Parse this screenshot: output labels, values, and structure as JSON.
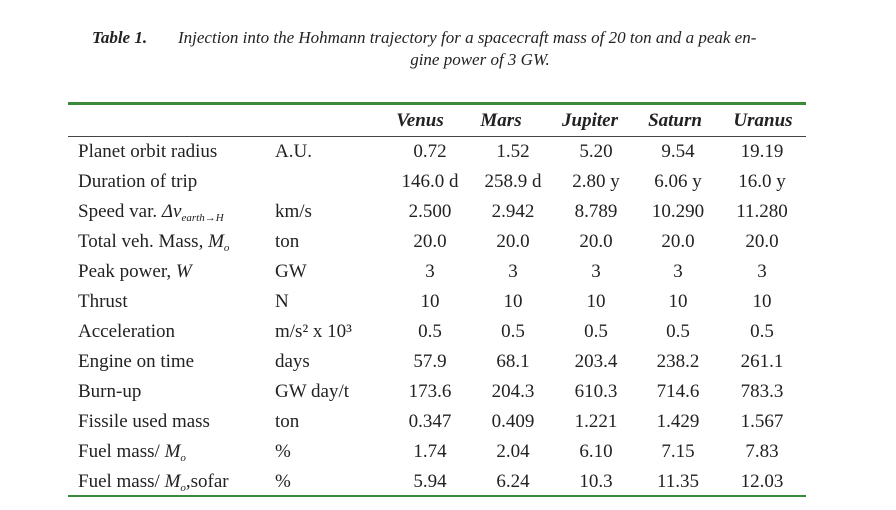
{
  "caption": {
    "label": "Table 1.",
    "lines": [
      "Injection into the Hohmann trajectory for a spacecraft mass of 20 ton and a peak en-",
      "gine power of 3 GW."
    ]
  },
  "table": {
    "header": [
      "Venus",
      "Mars",
      "Jupiter",
      "Saturn",
      "Uranus"
    ],
    "rows": [
      {
        "label": "Planet orbit radius",
        "unit": "A.U.",
        "values": [
          "0.72",
          "1.52",
          "5.20",
          "9.54",
          "19.19"
        ]
      },
      {
        "label": "Duration of trip",
        "values": [
          "146.0 d",
          "258.9 d",
          "2.80 y",
          "6.06 y",
          "16.0 y"
        ]
      },
      {
        "label": "Speed var. ",
        "symbol": "Δv",
        "subscript": "earth→H",
        "unit": "km/s",
        "values": [
          "2.500",
          "2.942",
          "8.789",
          "10.290",
          "11.280"
        ]
      },
      {
        "label": "Total veh. Mass, ",
        "symbol": "M",
        "subscript": "o",
        "unit": "ton",
        "values": [
          "20.0",
          "20.0",
          "20.0",
          "20.0",
          "20.0"
        ]
      },
      {
        "label": "Peak power, ",
        "symbol": "W",
        "unit": "GW",
        "values": [
          "3",
          "3",
          "3",
          "3",
          "3"
        ]
      },
      {
        "label": "Thrust",
        "unit": "N",
        "values": [
          "10",
          "10",
          "10",
          "10",
          "10"
        ]
      },
      {
        "label": "Acceleration",
        "unit": "m/s² x 10³",
        "values": [
          "0.5",
          "0.5",
          "0.5",
          "0.5",
          "0.5"
        ]
      },
      {
        "label": "Engine on time",
        "unit": "days",
        "values": [
          "57.9",
          "68.1",
          "203.4",
          "238.2",
          "261.1"
        ]
      },
      {
        "label": "Burn-up",
        "unit": "GW day/t",
        "values": [
          "173.6",
          "204.3",
          "610.3",
          "714.6",
          "783.3"
        ]
      },
      {
        "label": "Fissile used mass",
        "unit": "ton",
        "values": [
          "0.347",
          "0.409",
          "1.221",
          "1.429",
          "1.567"
        ]
      },
      {
        "label": "Fuel mass/ ",
        "symbol": "M",
        "subscript": "o",
        "unit": "%",
        "values": [
          "1.74",
          "2.04",
          "6.10",
          "7.15",
          "7.83"
        ]
      },
      {
        "label": "Fuel mass/ ",
        "symbol": "M",
        "subscript": "o",
        "after": ",sofar",
        "unit": "%",
        "values": [
          "5.94",
          "6.24",
          "10.3",
          "11.35",
          "12.03"
        ]
      }
    ]
  }
}
